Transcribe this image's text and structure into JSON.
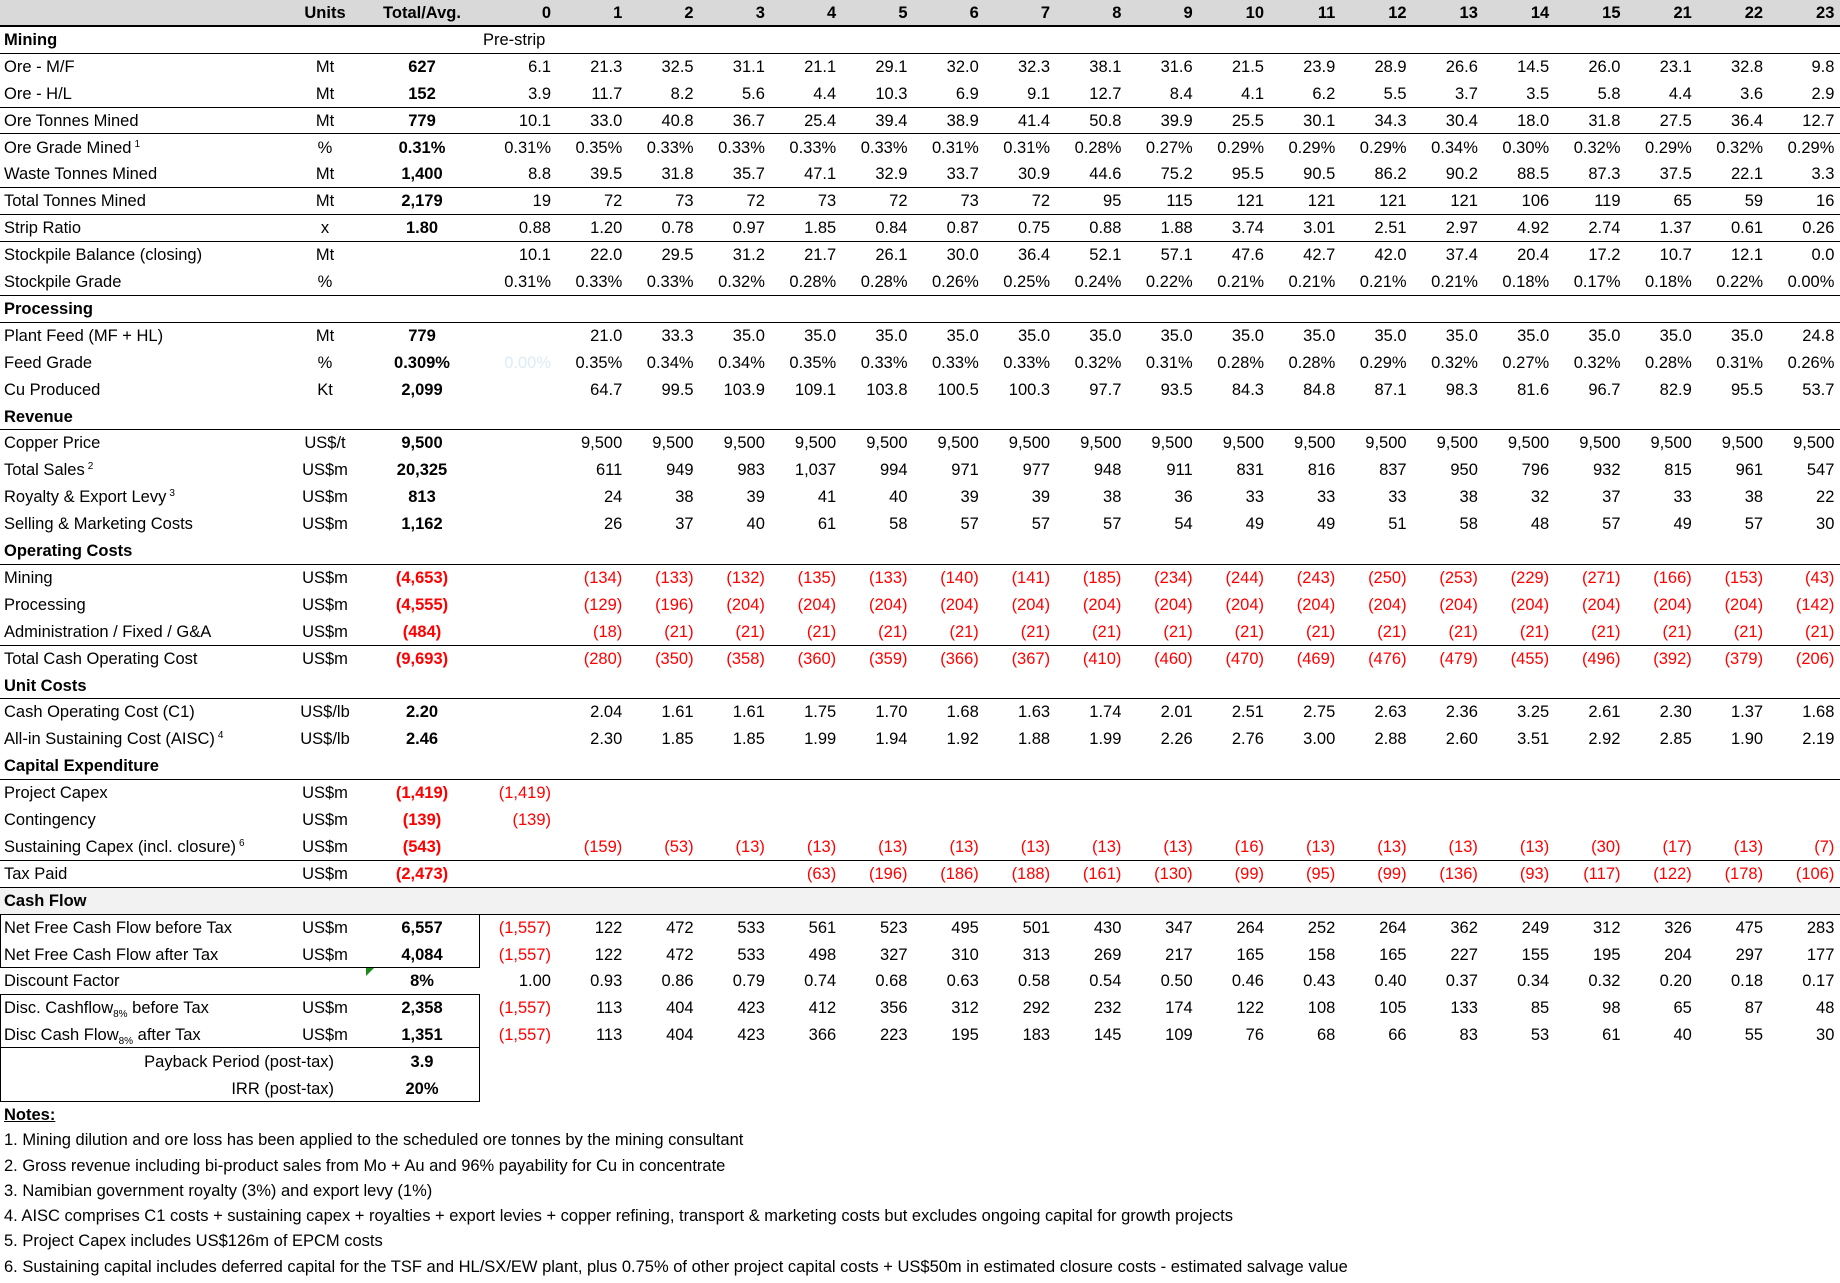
{
  "header": {
    "units": "Units",
    "total": "Total/Avg.",
    "years": [
      "0",
      "1",
      "2",
      "3",
      "4",
      "5",
      "6",
      "7",
      "8",
      "9",
      "10",
      "11",
      "12",
      "13",
      "14",
      "15",
      "21",
      "22",
      "23"
    ]
  },
  "rows": [
    {
      "type": "section",
      "label": "Mining",
      "note_year0": "Pre-strip"
    },
    {
      "label": "Ore - M/F",
      "units": "Mt",
      "total": "627",
      "values": [
        "6.1",
        "21.3",
        "32.5",
        "31.1",
        "21.1",
        "29.1",
        "32.0",
        "32.3",
        "38.1",
        "31.6",
        "21.5",
        "23.9",
        "28.9",
        "26.6",
        "14.5",
        "26.0",
        "23.1",
        "32.8",
        "9.8"
      ]
    },
    {
      "label": "Ore - H/L",
      "units": "Mt",
      "total": "152",
      "values": [
        "3.9",
        "11.7",
        "8.2",
        "5.6",
        "4.4",
        "10.3",
        "6.9",
        "9.1",
        "12.7",
        "8.4",
        "4.1",
        "6.2",
        "5.5",
        "3.7",
        "3.5",
        "5.8",
        "4.4",
        "3.6",
        "2.9"
      ]
    },
    {
      "label": "Ore Tonnes Mined",
      "units": "Mt",
      "total": "779",
      "values": [
        "10.1",
        "33.0",
        "40.8",
        "36.7",
        "25.4",
        "39.4",
        "38.9",
        "41.4",
        "50.8",
        "39.9",
        "25.5",
        "30.1",
        "34.3",
        "30.4",
        "18.0",
        "31.8",
        "27.5",
        "36.4",
        "12.7"
      ]
    },
    {
      "label": "Ore Grade Mined",
      "sup": "1",
      "units": "%",
      "total": "0.31%",
      "values": [
        "0.31%",
        "0.35%",
        "0.33%",
        "0.33%",
        "0.33%",
        "0.33%",
        "0.31%",
        "0.31%",
        "0.28%",
        "0.27%",
        "0.29%",
        "0.29%",
        "0.29%",
        "0.34%",
        "0.30%",
        "0.32%",
        "0.29%",
        "0.32%",
        "0.29%"
      ]
    },
    {
      "label": "Waste Tonnes Mined",
      "units": "Mt",
      "total": "1,400",
      "values": [
        "8.8",
        "39.5",
        "31.8",
        "35.7",
        "47.1",
        "32.9",
        "33.7",
        "30.9",
        "44.6",
        "75.2",
        "95.5",
        "90.5",
        "86.2",
        "90.2",
        "88.5",
        "87.3",
        "37.5",
        "22.1",
        "3.3"
      ]
    },
    {
      "label": "Total Tonnes Mined",
      "units": "Mt",
      "total": "2,179",
      "values": [
        "19",
        "72",
        "73",
        "72",
        "73",
        "72",
        "73",
        "72",
        "95",
        "115",
        "121",
        "121",
        "121",
        "121",
        "106",
        "119",
        "65",
        "59",
        "16"
      ]
    },
    {
      "label": "Strip Ratio",
      "units": "x",
      "total": "1.80",
      "values": [
        "0.88",
        "1.20",
        "0.78",
        "0.97",
        "1.85",
        "0.84",
        "0.87",
        "0.75",
        "0.88",
        "1.88",
        "3.74",
        "3.01",
        "2.51",
        "2.97",
        "4.92",
        "2.74",
        "1.37",
        "0.61",
        "0.26"
      ]
    },
    {
      "label": "Stockpile Balance (closing)",
      "units": "Mt",
      "total": "",
      "values": [
        "10.1",
        "22.0",
        "29.5",
        "31.2",
        "21.7",
        "26.1",
        "30.0",
        "36.4",
        "52.1",
        "57.1",
        "47.6",
        "42.7",
        "42.0",
        "37.4",
        "20.4",
        "17.2",
        "10.7",
        "12.1",
        "0.0"
      ]
    },
    {
      "label": "Stockpile Grade",
      "units": "%",
      "total": "",
      "values": [
        "0.31%",
        "0.33%",
        "0.33%",
        "0.32%",
        "0.28%",
        "0.28%",
        "0.26%",
        "0.25%",
        "0.24%",
        "0.22%",
        "0.21%",
        "0.21%",
        "0.21%",
        "0.21%",
        "0.18%",
        "0.17%",
        "0.18%",
        "0.22%",
        "0.00%"
      ]
    },
    {
      "type": "section",
      "label": "Processing"
    },
    {
      "label": "Plant Feed (MF + HL)",
      "units": "Mt",
      "total": "779",
      "values": [
        "",
        "21.0",
        "33.3",
        "35.0",
        "35.0",
        "35.0",
        "35.0",
        "35.0",
        "35.0",
        "35.0",
        "35.0",
        "35.0",
        "35.0",
        "35.0",
        "35.0",
        "35.0",
        "35.0",
        "35.0",
        "24.8"
      ]
    },
    {
      "label": "Feed Grade",
      "units": "%",
      "total": "0.309%",
      "faint_year0": true,
      "values": [
        "0.00%",
        "0.35%",
        "0.34%",
        "0.34%",
        "0.35%",
        "0.33%",
        "0.33%",
        "0.33%",
        "0.32%",
        "0.31%",
        "0.28%",
        "0.28%",
        "0.29%",
        "0.32%",
        "0.27%",
        "0.32%",
        "0.28%",
        "0.31%",
        "0.26%"
      ]
    },
    {
      "label": "Cu Produced",
      "units": "Kt",
      "total": "2,099",
      "values": [
        "",
        "64.7",
        "99.5",
        "103.9",
        "109.1",
        "103.8",
        "100.5",
        "100.3",
        "97.7",
        "93.5",
        "84.3",
        "84.8",
        "87.1",
        "98.3",
        "81.6",
        "96.7",
        "82.9",
        "95.5",
        "53.7"
      ]
    },
    {
      "type": "section",
      "label": "Revenue"
    },
    {
      "label": "Copper Price",
      "units": "US$/t",
      "total": "9,500",
      "values": [
        "",
        "9,500",
        "9,500",
        "9,500",
        "9,500",
        "9,500",
        "9,500",
        "9,500",
        "9,500",
        "9,500",
        "9,500",
        "9,500",
        "9,500",
        "9,500",
        "9,500",
        "9,500",
        "9,500",
        "9,500",
        "9,500"
      ]
    },
    {
      "label": "Total Sales",
      "sup": "2",
      "units": "US$m",
      "total": "20,325",
      "values": [
        "",
        "611",
        "949",
        "983",
        "1,037",
        "994",
        "971",
        "977",
        "948",
        "911",
        "831",
        "816",
        "837",
        "950",
        "796",
        "932",
        "815",
        "961",
        "547"
      ]
    },
    {
      "label": "Royalty & Export Levy",
      "sup": "3",
      "units": "US$m",
      "total": "813",
      "values": [
        "",
        "24",
        "38",
        "39",
        "41",
        "40",
        "39",
        "39",
        "38",
        "36",
        "33",
        "33",
        "33",
        "38",
        "32",
        "37",
        "33",
        "38",
        "22"
      ]
    },
    {
      "label": "Selling & Marketing Costs",
      "units": "US$m",
      "total": "1,162",
      "values": [
        "",
        "26",
        "37",
        "40",
        "61",
        "58",
        "57",
        "57",
        "57",
        "54",
        "49",
        "49",
        "51",
        "58",
        "48",
        "57",
        "49",
        "57",
        "30"
      ]
    },
    {
      "type": "section",
      "label": "Operating Costs"
    },
    {
      "label": "Mining",
      "units": "US$m",
      "total": "(4,653)",
      "values": [
        "",
        "(134)",
        "(133)",
        "(132)",
        "(135)",
        "(133)",
        "(140)",
        "(141)",
        "(185)",
        "(234)",
        "(244)",
        "(243)",
        "(250)",
        "(253)",
        "(229)",
        "(271)",
        "(166)",
        "(153)",
        "(43)"
      ]
    },
    {
      "label": "Processing",
      "units": "US$m",
      "total": "(4,555)",
      "values": [
        "",
        "(129)",
        "(196)",
        "(204)",
        "(204)",
        "(204)",
        "(204)",
        "(204)",
        "(204)",
        "(204)",
        "(204)",
        "(204)",
        "(204)",
        "(204)",
        "(204)",
        "(204)",
        "(204)",
        "(204)",
        "(142)"
      ]
    },
    {
      "label": "Administration / Fixed / G&A",
      "units": "US$m",
      "total": "(484)",
      "values": [
        "",
        "(18)",
        "(21)",
        "(21)",
        "(21)",
        "(21)",
        "(21)",
        "(21)",
        "(21)",
        "(21)",
        "(21)",
        "(21)",
        "(21)",
        "(21)",
        "(21)",
        "(21)",
        "(21)",
        "(21)",
        "(21)"
      ]
    },
    {
      "label": "Total Cash Operating Cost",
      "units": "US$m",
      "total": "(9,693)",
      "values": [
        "",
        "(280)",
        "(350)",
        "(358)",
        "(360)",
        "(359)",
        "(366)",
        "(367)",
        "(410)",
        "(460)",
        "(470)",
        "(469)",
        "(476)",
        "(479)",
        "(455)",
        "(496)",
        "(392)",
        "(379)",
        "(206)"
      ]
    },
    {
      "type": "section",
      "label": "Unit Costs"
    },
    {
      "label": "Cash Operating Cost (C1)",
      "units": "US$/lb",
      "total": "2.20",
      "values": [
        "",
        "2.04",
        "1.61",
        "1.61",
        "1.75",
        "1.70",
        "1.68",
        "1.63",
        "1.74",
        "2.01",
        "2.51",
        "2.75",
        "2.63",
        "2.36",
        "3.25",
        "2.61",
        "2.30",
        "1.37",
        "1.68"
      ]
    },
    {
      "label": "All-in Sustaining Cost (AISC)",
      "sup": "4",
      "units": "US$/lb",
      "total": "2.46",
      "values": [
        "",
        "2.30",
        "1.85",
        "1.85",
        "1.99",
        "1.94",
        "1.92",
        "1.88",
        "1.99",
        "2.26",
        "2.76",
        "3.00",
        "2.88",
        "2.60",
        "3.51",
        "2.92",
        "2.85",
        "1.90",
        "2.19"
      ]
    },
    {
      "type": "section",
      "label": "Capital Expenditure"
    },
    {
      "label": "Project Capex",
      "units": "US$m",
      "total": "(1,419)",
      "values": [
        "(1,419)",
        "",
        "",
        "",
        "",
        "",
        "",
        "",
        "",
        "",
        "",
        "",
        "",
        "",
        "",
        "",
        "",
        "",
        ""
      ]
    },
    {
      "label": "Contingency",
      "units": "US$m",
      "total": "(139)",
      "values": [
        "(139)",
        "",
        "",
        "",
        "",
        "",
        "",
        "",
        "",
        "",
        "",
        "",
        "",
        "",
        "",
        "",
        "",
        "",
        ""
      ]
    },
    {
      "label": "Sustaining Capex (incl. closure)",
      "sup": "6",
      "units": "US$m",
      "total": "(543)",
      "values": [
        "",
        "(159)",
        "(53)",
        "(13)",
        "(13)",
        "(13)",
        "(13)",
        "(13)",
        "(13)",
        "(13)",
        "(16)",
        "(13)",
        "(13)",
        "(13)",
        "(13)",
        "(30)",
        "(17)",
        "(13)",
        "(7)"
      ]
    },
    {
      "label": "Tax Paid",
      "units": "US$m",
      "total": "(2,473)",
      "values": [
        "",
        "",
        "",
        "",
        "(63)",
        "(196)",
        "(186)",
        "(188)",
        "(161)",
        "(130)",
        "(99)",
        "(95)",
        "(99)",
        "(136)",
        "(93)",
        "(117)",
        "(122)",
        "(178)",
        "(106)"
      ]
    },
    {
      "type": "section",
      "label": "Cash Flow"
    },
    {
      "label": "Net Free Cash Flow before Tax",
      "units": "US$m",
      "total": "6,557",
      "values": [
        "(1,557)",
        "122",
        "472",
        "533",
        "561",
        "523",
        "495",
        "501",
        "430",
        "347",
        "264",
        "252",
        "264",
        "362",
        "249",
        "312",
        "326",
        "475",
        "283"
      ]
    },
    {
      "label": "Net Free Cash Flow after Tax",
      "units": "US$m",
      "total": "4,084",
      "values": [
        "(1,557)",
        "122",
        "472",
        "533",
        "498",
        "327",
        "310",
        "313",
        "269",
        "217",
        "165",
        "158",
        "165",
        "227",
        "155",
        "195",
        "204",
        "297",
        "177"
      ]
    },
    {
      "label": "Discount Factor",
      "units": "",
      "total": "8%",
      "values": [
        "1.00",
        "0.93",
        "0.86",
        "0.79",
        "0.74",
        "0.68",
        "0.63",
        "0.58",
        "0.54",
        "0.50",
        "0.46",
        "0.43",
        "0.40",
        "0.37",
        "0.34",
        "0.32",
        "0.20",
        "0.18",
        "0.17"
      ]
    },
    {
      "label": "Disc. Cashflow",
      "sub": "8%",
      "post": " before Tax",
      "units": "US$m",
      "total": "2,358",
      "values": [
        "(1,557)",
        "113",
        "404",
        "423",
        "412",
        "356",
        "312",
        "292",
        "232",
        "174",
        "122",
        "108",
        "105",
        "133",
        "85",
        "98",
        "65",
        "87",
        "48"
      ]
    },
    {
      "label": "Disc Cash Flow",
      "sub": "8%",
      "post": " after Tax",
      "units": "US$m",
      "total": "1,351",
      "values": [
        "(1,557)",
        "113",
        "404",
        "423",
        "366",
        "223",
        "195",
        "183",
        "145",
        "109",
        "76",
        "68",
        "66",
        "83",
        "53",
        "61",
        "40",
        "55",
        "30"
      ]
    },
    {
      "type": "summary",
      "label": "Payback Period (post-tax)",
      "total": "3.9"
    },
    {
      "type": "summary",
      "label": "IRR (post-tax)",
      "total": "20%"
    }
  ],
  "notes": {
    "title": "Notes:",
    "items": [
      "1. Mining dilution and ore loss has been applied to the scheduled ore tonnes by the mining consultant",
      "2. Gross revenue including bi-product sales from Mo + Au and 96% payability for Cu in concentrate",
      "3. Namibian government royalty (3%) and export levy (1%)",
      "4. AISC comprises C1 costs + sustaining capex + royalties + export levies + copper refining, transport & marketing costs but excludes ongoing capital for growth projects",
      "5. Project Capex includes US$126m of EPCM costs",
      "6. Sustaining capital includes deferred capital for the TSF and HL/SX/EW plant, plus 0.75% of other project capital costs + US$50m in estimated closure costs - estimated salvage value"
    ]
  },
  "colors": {
    "negative": "#ff0000",
    "header_bg": "#d9d9d9",
    "cashflow_bg": "#f2f2f2",
    "comment_marker": "#1a8a1a"
  }
}
